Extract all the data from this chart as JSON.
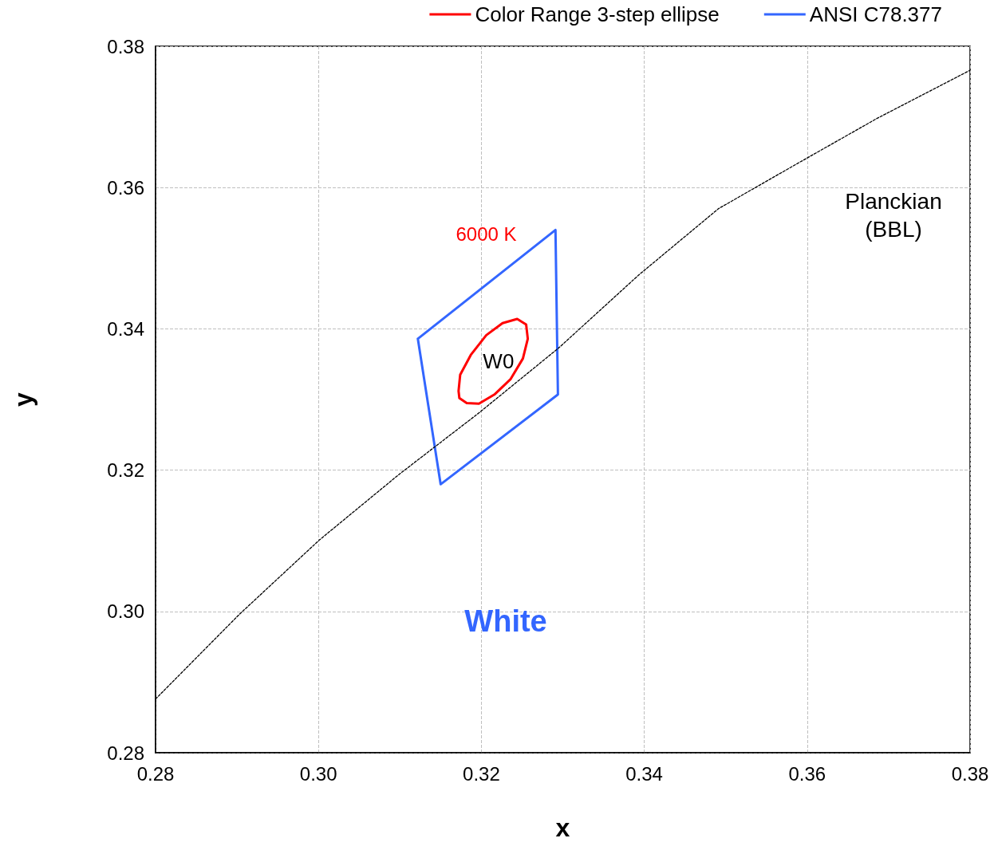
{
  "chart_data": {
    "type": "line",
    "xlabel": "x",
    "ylabel": "y",
    "xlim": [
      0.28,
      0.38
    ],
    "xticks": [
      0.28,
      {
        "value": 0.3,
        "label": "0.30"
      },
      0.32,
      0.34,
      0.36,
      0.38
    ],
    "ylim": [
      0.28,
      0.38
    ],
    "yticks": [
      0.28,
      {
        "value": 0.3,
        "label": "0.30"
      },
      0.32,
      0.34,
      0.36,
      0.38
    ],
    "grid": true,
    "legend": "top right",
    "marker": "none",
    "series": [
      {
        "name": "Color Range 3-step ellipse",
        "color": "#ff0000",
        "x": [
          0.3172,
          0.3174,
          0.3187,
          0.3206,
          0.3226,
          0.3244,
          0.3255,
          0.3257,
          null,
          0.3172,
          0.3173,
          0.3182,
          0.3197,
          0.3216,
          0.3236,
          0.3251,
          0.3257
        ],
        "values": [
          0.3312,
          0.3335,
          0.3363,
          0.3391,
          0.3408,
          0.3414,
          0.3406,
          0.3386,
          null,
          0.3312,
          0.3302,
          0.3295,
          0.3294,
          0.3307,
          0.3329,
          0.3358,
          0.3386
        ]
      },
      {
        "name": "ANSI C78.377",
        "color": "#3366ff",
        "x": [
          0.3122,
          0.3291,
          0.3294,
          null,
          0.3122,
          0.315,
          0.3294
        ],
        "values": [
          0.3386,
          0.354,
          0.3307,
          null,
          0.3386,
          0.318,
          0.3307
        ]
      },
      {
        "color": "#000000",
        "line_style": "dashed",
        "x": [
          0.28,
          0.2903,
          0.3001,
          0.3099,
          0.3197,
          0.3295,
          0.3393,
          0.3491,
          0.3588,
          0.3637,
          0.3686,
          0.38
        ],
        "values": [
          0.2876,
          0.2996,
          0.3101,
          0.3194,
          0.3281,
          0.3373,
          0.3476,
          0.357,
          0.3634,
          0.3666,
          0.3698,
          0.3766
        ]
      }
    ],
    "annotations": [
      "6000 K",
      "W0",
      "White",
      "Planckian\n(BBL)"
    ]
  }
}
